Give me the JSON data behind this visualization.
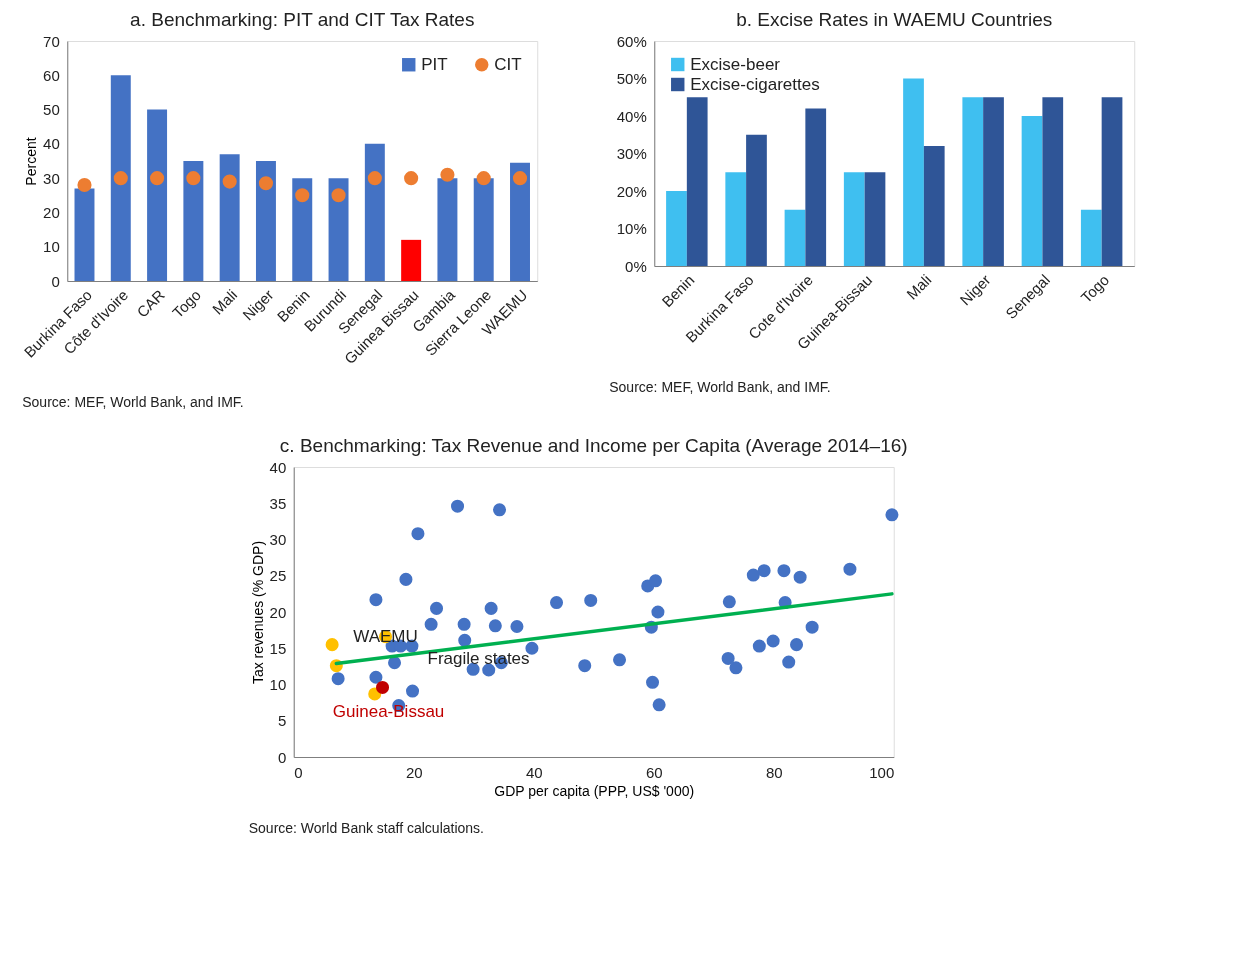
{
  "chart_data": [
    {
      "type": "bar",
      "title": "a. Benchmarking: PIT and CIT Tax Rates",
      "ylabel": "Percent",
      "categories": [
        "Burkina Faso",
        "Côte d'Ivoire",
        "CAR",
        "Togo",
        "Mali",
        "Niger",
        "Benin",
        "Burundi",
        "Senegal",
        "Guinea Bissau",
        "Gambia",
        "Sierra Leone",
        "WAEMU"
      ],
      "series": [
        {
          "name": "PIT",
          "color": "#4472c4",
          "colors": [
            "#4472c4",
            "#4472c4",
            "#4472c4",
            "#4472c4",
            "#4472c4",
            "#4472c4",
            "#4472c4",
            "#4472c4",
            "#4472c4",
            "#ff0000",
            "#4472c4",
            "#4472c4",
            "#4472c4"
          ],
          "values": [
            27,
            60,
            50,
            35,
            37,
            35,
            30,
            30,
            40,
            12,
            30,
            30,
            34.5
          ]
        },
        {
          "name": "CIT",
          "type": "scatter",
          "marker": "circle",
          "color": "#ed7d31",
          "values": [
            28,
            30,
            30,
            30,
            29,
            28.5,
            25,
            25,
            30,
            30,
            31,
            30,
            30
          ]
        }
      ],
      "ylim": [
        0,
        70
      ],
      "yticks": [
        0,
        10,
        20,
        30,
        40,
        50,
        60,
        70
      ],
      "legend": "top right",
      "annotations": [
        "Source: MEF, World Bank, and IMF."
      ]
    },
    {
      "type": "bar",
      "title": "b. Excise Rates in WAEMU Countries",
      "categories": [
        "Benin",
        "Burkina Faso",
        "Cote d'Ivoire",
        "Guinea-Bissau",
        "Mali",
        "Niger",
        "Senegal",
        "Togo"
      ],
      "series": [
        {
          "name": "Excise-beer",
          "color": "#3fbff0",
          "values": [
            20,
            25,
            15,
            25,
            50,
            45,
            40,
            15
          ]
        },
        {
          "name": "Excise-cigarettes",
          "color": "#2f5597",
          "values": [
            45,
            35,
            42,
            25,
            32,
            45,
            45,
            45
          ]
        }
      ],
      "ylim": [
        0,
        60
      ],
      "yticks": [
        {
          "value": 0,
          "label": "0%"
        },
        {
          "value": 10,
          "label": "10%"
        },
        {
          "value": 20,
          "label": "20%"
        },
        {
          "value": 30,
          "label": "30%"
        },
        {
          "value": 40,
          "label": "40%"
        },
        {
          "value": 50,
          "label": "50%"
        },
        {
          "value": 60,
          "label": "60%"
        }
      ],
      "legend": "top left",
      "annotations": [
        "Source: MEF, World Bank, and IMF."
      ]
    },
    {
      "type": "scatter",
      "title": "c. Benchmarking: Tax Revenue and Income per Capita (Average 2014–16)",
      "xlabel": "GDP per capita (PPP, US$ '000)",
      "ylabel": "Tax revenues (% GDP)",
      "series": [
        {
          "color": "#4472c4",
          "x": [
            7.4,
            13.7,
            13.7,
            18.7,
            20.7,
            27.3,
            34.3,
            23.8,
            22.9,
            28.4,
            32.9,
            33.6,
            37.2,
            28.5,
            39.7,
            16.4,
            17.8,
            19.7,
            16.8,
            29.9,
            32.5,
            34.6,
            19.8,
            17.5,
            43.8,
            49.5,
            48.5,
            54.3,
            59.0,
            60.3,
            60.7,
            59.6,
            59.8,
            60.9,
            72.6,
            72.4,
            73.7,
            76.6,
            78.4,
            81.7,
            84.4,
            81.9,
            86.4,
            77.6,
            79.9,
            83.8,
            82.5,
            92.7,
            99.7
          ],
          "values": [
            10.8,
            21.7,
            11.0,
            24.5,
            30.8,
            34.6,
            34.1,
            20.5,
            18.3,
            18.3,
            20.5,
            18.1,
            18.0,
            16.1,
            15.0,
            15.3,
            15.3,
            15.3,
            13.0,
            12.1,
            12.0,
            13.0,
            9.1,
            7.1,
            21.3,
            21.6,
            12.6,
            13.4,
            23.6,
            24.3,
            20.0,
            17.9,
            10.3,
            7.2,
            21.4,
            13.6,
            12.3,
            25.1,
            25.7,
            25.7,
            24.8,
            21.3,
            17.9,
            15.3,
            16.0,
            15.5,
            13.1,
            25.9,
            33.4
          ]
        },
        {
          "color": "#ffc000",
          "x": [
            6.4,
            7.1,
            15.3,
            13.5
          ],
          "values": [
            15.5,
            12.6,
            16.6,
            8.7
          ]
        },
        {
          "name": "Guinea-Bissau",
          "color": "#c00000",
          "x": [
            14.8
          ],
          "values": [
            9.6
          ]
        },
        {
          "type": "line",
          "color": "#00b050",
          "x": [
            7.1,
            99.7
          ],
          "values": [
            12.9,
            22.5
          ]
        }
      ],
      "xlim": [
        0,
        100
      ],
      "xticks": [
        0,
        20,
        40,
        60,
        80,
        100
      ],
      "ylim": [
        0,
        40
      ],
      "yticks": [
        0,
        5,
        10,
        15,
        20,
        25,
        30,
        35,
        40
      ],
      "annotations": [
        {
          "text": "WAEMU",
          "x": 15.3,
          "y": 16.6
        },
        {
          "text": "Fragile states",
          "x": 30.8,
          "y": 13.5
        },
        "Source: World Bank staff calculations."
      ]
    }
  ]
}
